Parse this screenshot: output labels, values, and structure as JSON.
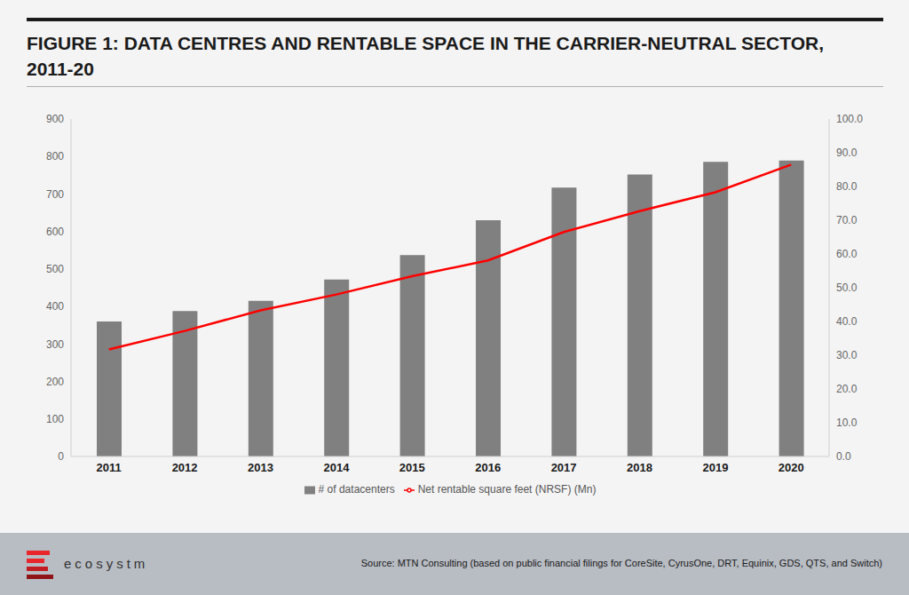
{
  "chart_data": {
    "type": "bar",
    "title": "FIGURE 1: DATA CENTRES AND RENTABLE SPACE IN THE CARRIER-NEUTRAL SECTOR, 2011-20",
    "annotations": [
      "ecosystm",
      "Source: MTN Consulting (based on public financial filings for CoreSite, CyrusOne, DRT, Equinix, GDS, QTS, and Switch)"
    ],
    "categories": [
      "2011",
      "2012",
      "2013",
      "2014",
      "2015",
      "2016",
      "2017",
      "2018",
      "2019",
      "2020"
    ],
    "series": [
      {
        "name": "# of datacenters",
        "type": "bar",
        "color": "#808080",
        "values": [
          360,
          388,
          415,
          472,
          537,
          630,
          717,
          752,
          786,
          789
        ]
      },
      {
        "name": "Net rentable square feet (NRSF) (Mn)",
        "type": "line",
        "axis": "y2",
        "color": "#ff0000",
        "values": [
          31.7,
          37.2,
          43.3,
          48.0,
          53.4,
          58.1,
          66.5,
          72.7,
          78.3,
          86.5
        ]
      }
    ],
    "ylim": [
      0,
      900
    ],
    "yticks": [
      0,
      100,
      200,
      300,
      400,
      500,
      600,
      700,
      800,
      900
    ],
    "y2lim": [
      0,
      100
    ],
    "y2ticks": [
      {
        "value": 0,
        "label": "0.0"
      },
      {
        "value": 10,
        "label": "10.0"
      },
      {
        "value": 20,
        "label": "20.0"
      },
      {
        "value": 30,
        "label": "30.0"
      },
      {
        "value": 40,
        "label": "40.0"
      },
      {
        "value": 50,
        "label": "50.0"
      },
      {
        "value": 60,
        "label": "60.0"
      },
      {
        "value": 70,
        "label": "70.0"
      },
      {
        "value": 80,
        "label": "80.0"
      },
      {
        "value": 90,
        "label": "90.0"
      },
      {
        "value": 100,
        "label": "100.0"
      }
    ],
    "grid": false,
    "legend": "bottom"
  }
}
